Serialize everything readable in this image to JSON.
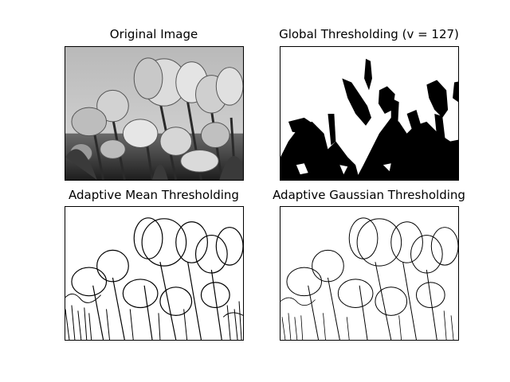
{
  "figure": {
    "panels": [
      {
        "title": "Original Image"
      },
      {
        "title": "Global Thresholding (v = 127)"
      },
      {
        "title": "Adaptive Mean Thresholding"
      },
      {
        "title": "Adaptive Gaussian Thresholding"
      }
    ]
  }
}
